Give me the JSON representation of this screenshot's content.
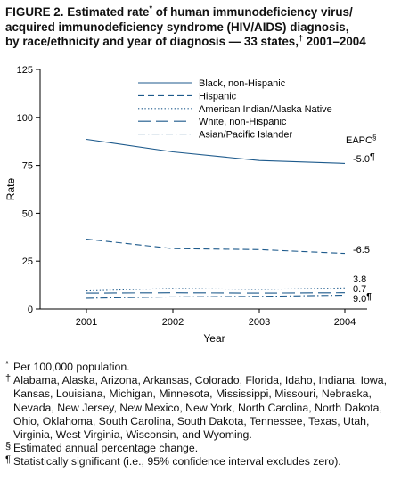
{
  "title": {
    "prefix": "FIGURE 2. Estimated rate",
    "mark": "*",
    "line1_rest": " of human immunodeficiency virus/",
    "line2": "acquired immunodeficiency syndrome (HIV/AIDS) diagnosis,",
    "line3_pre": "by race/ethnicity and year of diagnosis — 33 states,",
    "line3_mark": "†",
    "line3_post": " 2001–2004"
  },
  "chart_data": {
    "type": "line",
    "xlabel": "Year",
    "ylabel": "Rate",
    "x": [
      "2001",
      "2002",
      "2003",
      "2004"
    ],
    "ylim": [
      0,
      125
    ],
    "yticks": [
      0,
      25,
      50,
      75,
      100,
      125
    ],
    "grid": false,
    "legend_position": "top-right",
    "eapc_header": "EAPC§",
    "series": [
      {
        "name": "Black, non-Hispanic",
        "values": [
          88.5,
          82,
          77.5,
          76
        ],
        "dash": "solid",
        "eapc": "-5.0¶"
      },
      {
        "name": "Hispanic",
        "values": [
          36.5,
          31.5,
          31,
          29
        ],
        "dash": "dashed",
        "eapc": "-6.5"
      },
      {
        "name": "American Indian/Alaska Native",
        "values": [
          9.5,
          10.8,
          10.2,
          11
        ],
        "dash": "dotted",
        "eapc": "3.8"
      },
      {
        "name": "White, non-Hispanic",
        "values": [
          8.3,
          8.5,
          8.3,
          8.5
        ],
        "dash": "longdash",
        "eapc": "0.7"
      },
      {
        "name": "Asian/Pacific Islander",
        "values": [
          5.6,
          6.3,
          6.6,
          7.2
        ],
        "dash": "dashdot",
        "eapc": "9.0¶"
      }
    ],
    "color": "#1d5a8c"
  },
  "footnotes": [
    {
      "mark": "*",
      "text": "Per 100,000 population."
    },
    {
      "mark": "†",
      "text": "Alabama, Alaska, Arizona, Arkansas, Colorado, Florida, Idaho, Indiana, Iowa, Kansas, Louisiana, Michigan, Minnesota, Mississippi, Missouri, Nebraska, Nevada, New Jersey, New Mexico, New York, North Carolina, North Dakota, Ohio, Oklahoma, South Carolina, South Dakota, Tennessee, Texas, Utah, Virginia, West Virginia, Wisconsin, and Wyoming."
    },
    {
      "mark": "§",
      "text": "Estimated annual percentage change."
    },
    {
      "mark": "¶",
      "text": "Statistically significant (i.e., 95% confidence interval excludes zero)."
    }
  ]
}
